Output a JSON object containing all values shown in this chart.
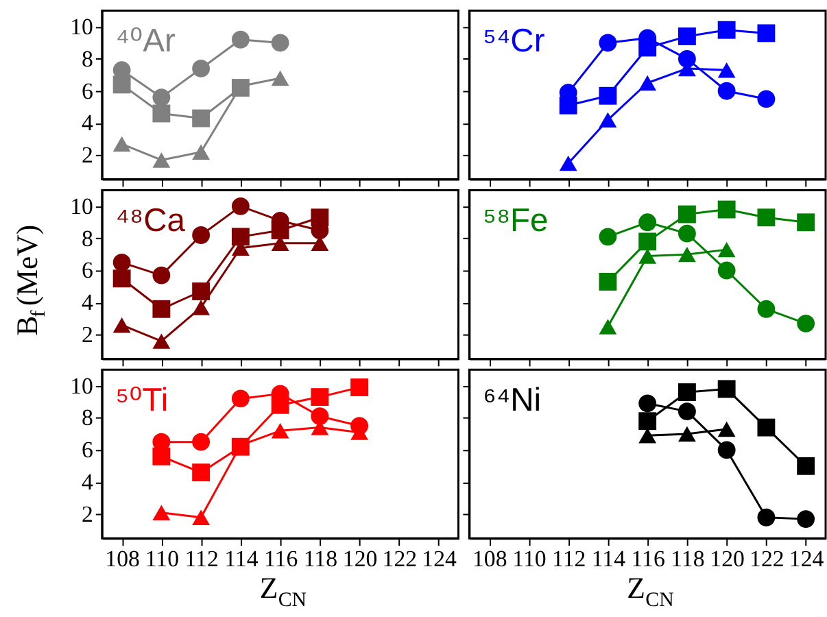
{
  "chart_data": [
    {
      "type": "line",
      "title": "⁴⁰Ar",
      "xlim": [
        107,
        125
      ],
      "ylim": [
        0.5,
        11
      ],
      "xticks": [
        108,
        110,
        112,
        114,
        116,
        118,
        120,
        122,
        124
      ],
      "yticks": [
        2,
        4,
        6,
        8,
        10
      ],
      "tick_labels": "y",
      "series": [
        {
          "color": "#808080",
          "marker": "circle",
          "x": [
            108,
            110,
            112,
            114,
            116
          ],
          "values": [
            7.3,
            5.6,
            7.4,
            9.2,
            9.0
          ]
        },
        {
          "color": "#808080",
          "marker": "square",
          "x": [
            108,
            110,
            112,
            114
          ],
          "values": [
            6.4,
            4.6,
            4.3,
            6.2
          ]
        },
        {
          "color": "#808080",
          "marker": "triangle",
          "x": [
            108,
            110,
            112,
            114,
            116
          ],
          "values": [
            2.7,
            1.7,
            2.2,
            6.3,
            6.8
          ]
        }
      ]
    },
    {
      "type": "line",
      "title": "⁵⁴Cr",
      "xlim": [
        107,
        125
      ],
      "ylim": [
        0.5,
        11
      ],
      "xticks": [
        108,
        110,
        112,
        114,
        116,
        118,
        120,
        122,
        124
      ],
      "yticks": [
        2,
        4,
        6,
        8,
        10
      ],
      "tick_labels": false,
      "series": [
        {
          "color": "#0000ff",
          "marker": "circle",
          "x": [
            112,
            114,
            116,
            118,
            120,
            122
          ],
          "values": [
            5.9,
            9.0,
            9.3,
            8.0,
            6.0,
            5.5
          ]
        },
        {
          "color": "#0000ff",
          "marker": "square",
          "x": [
            112,
            114,
            116,
            118,
            120,
            122
          ],
          "values": [
            5.1,
            5.7,
            8.7,
            9.4,
            9.8,
            9.6
          ]
        },
        {
          "color": "#0000ff",
          "marker": "triangle",
          "x": [
            112,
            114,
            116,
            118,
            120
          ],
          "values": [
            1.5,
            4.2,
            6.5,
            7.4,
            7.3
          ]
        }
      ]
    },
    {
      "type": "line",
      "title": "⁴⁸Ca",
      "ylabel": "B$_{f}$(MeV)",
      "xlim": [
        107,
        125
      ],
      "ylim": [
        0.5,
        11
      ],
      "xticks": [
        108,
        110,
        112,
        114,
        116,
        118,
        120,
        122,
        124
      ],
      "yticks": [
        2,
        4,
        6,
        8,
        10
      ],
      "tick_labels": "y",
      "series": [
        {
          "color": "#800000",
          "marker": "circle",
          "x": [
            108,
            110,
            112,
            114,
            116,
            118
          ],
          "values": [
            6.5,
            5.7,
            8.2,
            10.0,
            9.1,
            8.5
          ]
        },
        {
          "color": "#800000",
          "marker": "square",
          "x": [
            108,
            110,
            112,
            114,
            116,
            118
          ],
          "values": [
            5.5,
            3.6,
            4.7,
            8.1,
            8.5,
            9.3
          ]
        },
        {
          "color": "#800000",
          "marker": "triangle",
          "x": [
            108,
            110,
            112,
            114,
            116,
            118
          ],
          "values": [
            2.6,
            1.6,
            3.7,
            7.4,
            7.7,
            7.7
          ]
        }
      ]
    },
    {
      "type": "line",
      "title": "⁵⁸Fe",
      "xlim": [
        107,
        125
      ],
      "ylim": [
        0.5,
        11
      ],
      "xticks": [
        108,
        110,
        112,
        114,
        116,
        118,
        120,
        122,
        124
      ],
      "yticks": [
        2,
        4,
        6,
        8,
        10
      ],
      "tick_labels": false,
      "series": [
        {
          "color": "#008000",
          "marker": "circle",
          "x": [
            114,
            116,
            118,
            120,
            122,
            124
          ],
          "values": [
            8.1,
            9.0,
            8.3,
            6.0,
            3.6,
            2.7
          ]
        },
        {
          "color": "#008000",
          "marker": "square",
          "x": [
            114,
            116,
            118,
            120,
            122,
            124
          ],
          "values": [
            5.3,
            7.8,
            9.5,
            9.8,
            9.3,
            9.0
          ]
        },
        {
          "color": "#008000",
          "marker": "triangle",
          "x": [
            114,
            116,
            118,
            120
          ],
          "values": [
            2.5,
            6.9,
            7.0,
            7.3
          ]
        }
      ]
    },
    {
      "type": "line",
      "title": "⁵⁰Ti",
      "xlabel": "Z$_{CN}$",
      "xlim": [
        107,
        125
      ],
      "ylim": [
        0.5,
        11
      ],
      "xticks": [
        108,
        110,
        112,
        114,
        116,
        118,
        120,
        122,
        124
      ],
      "yticks": [
        2,
        4,
        6,
        8,
        10
      ],
      "series": [
        {
          "color": "#ff0000",
          "marker": "circle",
          "x": [
            110,
            112,
            114,
            116,
            118,
            120
          ],
          "values": [
            6.5,
            6.5,
            9.2,
            9.5,
            8.1,
            7.5
          ]
        },
        {
          "color": "#ff0000",
          "marker": "square",
          "x": [
            110,
            112,
            114,
            116,
            118,
            120
          ],
          "values": [
            5.6,
            4.6,
            6.2,
            8.8,
            9.3,
            9.9
          ]
        },
        {
          "color": "#ff0000",
          "marker": "triangle",
          "x": [
            110,
            112,
            114,
            116,
            118,
            120
          ],
          "values": [
            2.1,
            1.8,
            6.3,
            7.2,
            7.4,
            7.1
          ]
        }
      ]
    },
    {
      "type": "line",
      "title": "⁶⁴Ni",
      "xlabel": "Z$_{CN}$",
      "xlim": [
        107,
        125
      ],
      "ylim": [
        0.5,
        11
      ],
      "xticks": [
        108,
        110,
        112,
        114,
        116,
        118,
        120,
        122,
        124
      ],
      "yticks": [
        2,
        4,
        6,
        8,
        10
      ],
      "tick_labels": "x",
      "series": [
        {
          "color": "#000000",
          "marker": "circle",
          "x": [
            116,
            118,
            120,
            122,
            124
          ],
          "values": [
            8.9,
            8.4,
            6.0,
            1.8,
            1.7
          ]
        },
        {
          "color": "#000000",
          "marker": "square",
          "x": [
            116,
            118,
            120,
            122,
            124
          ],
          "values": [
            7.8,
            9.6,
            9.8,
            7.4,
            5.0
          ]
        },
        {
          "color": "#000000",
          "marker": "triangle",
          "x": [
            116,
            118,
            120
          ],
          "values": [
            6.9,
            7.0,
            7.3
          ]
        }
      ]
    }
  ]
}
